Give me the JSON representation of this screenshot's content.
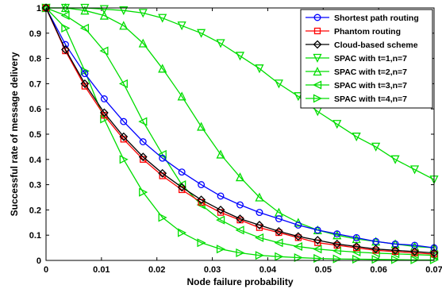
{
  "chart_data": {
    "type": "line",
    "title": "",
    "xlabel": "Node failure probability",
    "ylabel": "Successful rate of message delivery",
    "xlim": [
      0,
      0.07
    ],
    "ylim": [
      0,
      1
    ],
    "xticks": [
      0,
      0.01,
      0.02,
      0.03,
      0.04,
      0.05,
      0.06,
      0.07
    ],
    "xtick_labels": [
      "0",
      "0.01",
      "0.02",
      "0.03",
      "0.04",
      "0.05",
      "0.06",
      "0.07"
    ],
    "yticks": [
      0,
      0.1,
      0.2,
      0.3,
      0.4,
      0.5,
      0.6,
      0.7,
      0.8,
      0.9,
      1
    ],
    "ytick_labels": [
      "0",
      "0.1",
      "0.2",
      "0.3",
      "0.4",
      "0.5",
      "0.6",
      "0.7",
      "0.8",
      "0.9",
      "1"
    ],
    "grid": false,
    "legend_position": "top-right",
    "x": [
      0,
      0.0035,
      0.007,
      0.0105,
      0.014,
      0.0175,
      0.021,
      0.0245,
      0.028,
      0.0315,
      0.035,
      0.0385,
      0.042,
      0.0455,
      0.049,
      0.0525,
      0.056,
      0.0595,
      0.063,
      0.0665,
      0.07
    ],
    "series": [
      {
        "name": "Shortest path routing",
        "color": "#0000ff",
        "marker": "circle",
        "values": [
          1.0,
          0.855,
          0.74,
          0.64,
          0.55,
          0.47,
          0.405,
          0.35,
          0.3,
          0.255,
          0.22,
          0.19,
          0.165,
          0.14,
          0.12,
          0.105,
          0.09,
          0.075,
          0.065,
          0.06,
          0.05
        ]
      },
      {
        "name": "Phantom routing",
        "color": "#ff0000",
        "marker": "square",
        "values": [
          1.0,
          0.83,
          0.69,
          0.575,
          0.48,
          0.4,
          0.335,
          0.28,
          0.23,
          0.19,
          0.16,
          0.13,
          0.11,
          0.09,
          0.07,
          0.06,
          0.05,
          0.04,
          0.035,
          0.03,
          0.025
        ]
      },
      {
        "name": "Cloud-based scheme",
        "color": "#000000",
        "marker": "diamond",
        "values": [
          1.0,
          0.835,
          0.7,
          0.585,
          0.49,
          0.41,
          0.345,
          0.29,
          0.24,
          0.2,
          0.165,
          0.14,
          0.115,
          0.095,
          0.08,
          0.065,
          0.055,
          0.045,
          0.04,
          0.035,
          0.03
        ]
      },
      {
        "name": "SPAC with t=1,n=7",
        "color": "#00dd00",
        "marker": "triangle-down",
        "values": [
          1.0,
          1.0,
          1.0,
          0.995,
          0.99,
          0.98,
          0.96,
          0.93,
          0.9,
          0.86,
          0.81,
          0.76,
          0.7,
          0.65,
          0.59,
          0.54,
          0.49,
          0.45,
          0.4,
          0.36,
          0.32
        ]
      },
      {
        "name": "SPAC with t=2,n=7",
        "color": "#00dd00",
        "marker": "triangle-up",
        "values": [
          1.0,
          1.0,
          0.99,
          0.97,
          0.93,
          0.86,
          0.76,
          0.65,
          0.53,
          0.42,
          0.33,
          0.25,
          0.19,
          0.15,
          0.12,
          0.1,
          0.085,
          0.075,
          0.065,
          0.055,
          0.05
        ]
      },
      {
        "name": "SPAC with t=3,n=7",
        "color": "#00dd00",
        "marker": "triangle-left",
        "values": [
          1.0,
          0.97,
          0.92,
          0.83,
          0.7,
          0.55,
          0.42,
          0.3,
          0.22,
          0.16,
          0.12,
          0.09,
          0.07,
          0.055,
          0.045,
          0.038,
          0.033,
          0.029,
          0.026,
          0.023,
          0.02
        ]
      },
      {
        "name": "SPAC with t=4,n=7",
        "color": "#00dd00",
        "marker": "triangle-right",
        "values": [
          1.0,
          0.92,
          0.75,
          0.56,
          0.4,
          0.27,
          0.17,
          0.11,
          0.07,
          0.045,
          0.03,
          0.02,
          0.015,
          0.011,
          0.008,
          0.006,
          0.005,
          0.004,
          0.003,
          0.002,
          0.002
        ]
      }
    ]
  }
}
